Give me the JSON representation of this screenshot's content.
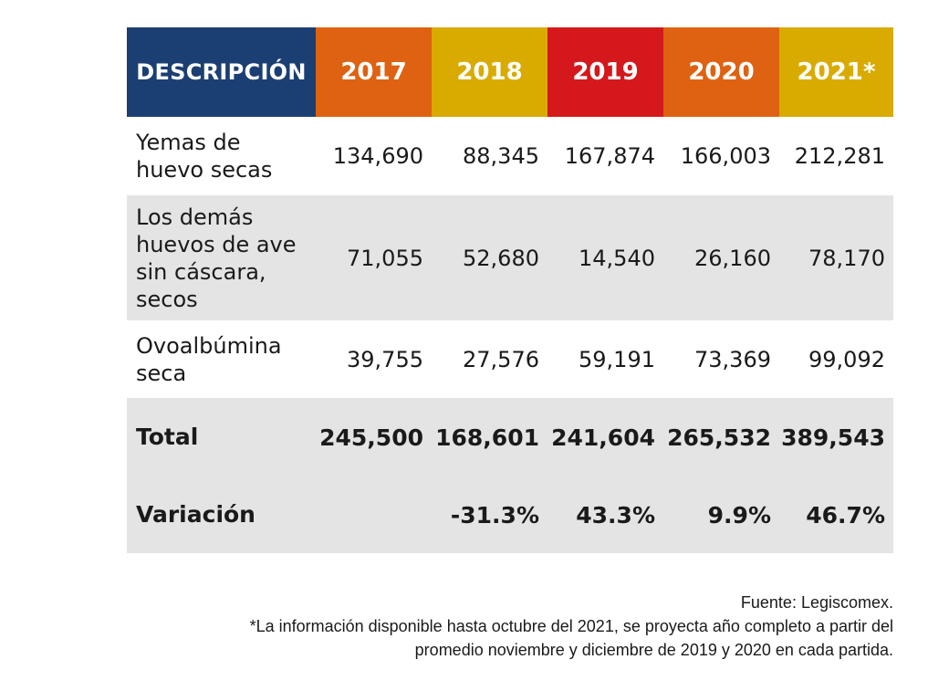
{
  "header": {
    "description": "DESCRIPCIÓN",
    "years": [
      "2017",
      "2018",
      "2019",
      "2020",
      "2021*"
    ],
    "colors": [
      "#1b3f72",
      "#de6211",
      "#d9ab00",
      "#d5181b",
      "#de6211",
      "#d9ab00"
    ]
  },
  "rows": [
    {
      "description": "Yemas de huevo secas",
      "values": [
        "134,690",
        "88,345",
        "167,874",
        "166,003",
        "212,281"
      ]
    },
    {
      "description": "Los demás huevos de ave sin cáscara, secos",
      "values": [
        "71,055",
        "52,680",
        "14,540",
        "26,160",
        "78,170"
      ]
    },
    {
      "description": "Ovoalbúmina seca",
      "values": [
        "39,755",
        "27,576",
        "59,191",
        "73,369",
        "99,092"
      ]
    }
  ],
  "total": {
    "label": "Total",
    "values": [
      "245,500",
      "168,601",
      "241,604",
      "265,532",
      "389,543"
    ]
  },
  "variation": {
    "label": "Variación",
    "values": [
      "",
      "-31.3%",
      "43.3%",
      "9.9%",
      "46.7%"
    ]
  },
  "footer": {
    "source": "Fuente: Legiscomex.",
    "note_line1": "*La información disponible hasta octubre del 2021, se proyecta año completo a partir del",
    "note_line2": "promedio noviembre y diciembre de 2019 y 2020 en cada partida."
  }
}
